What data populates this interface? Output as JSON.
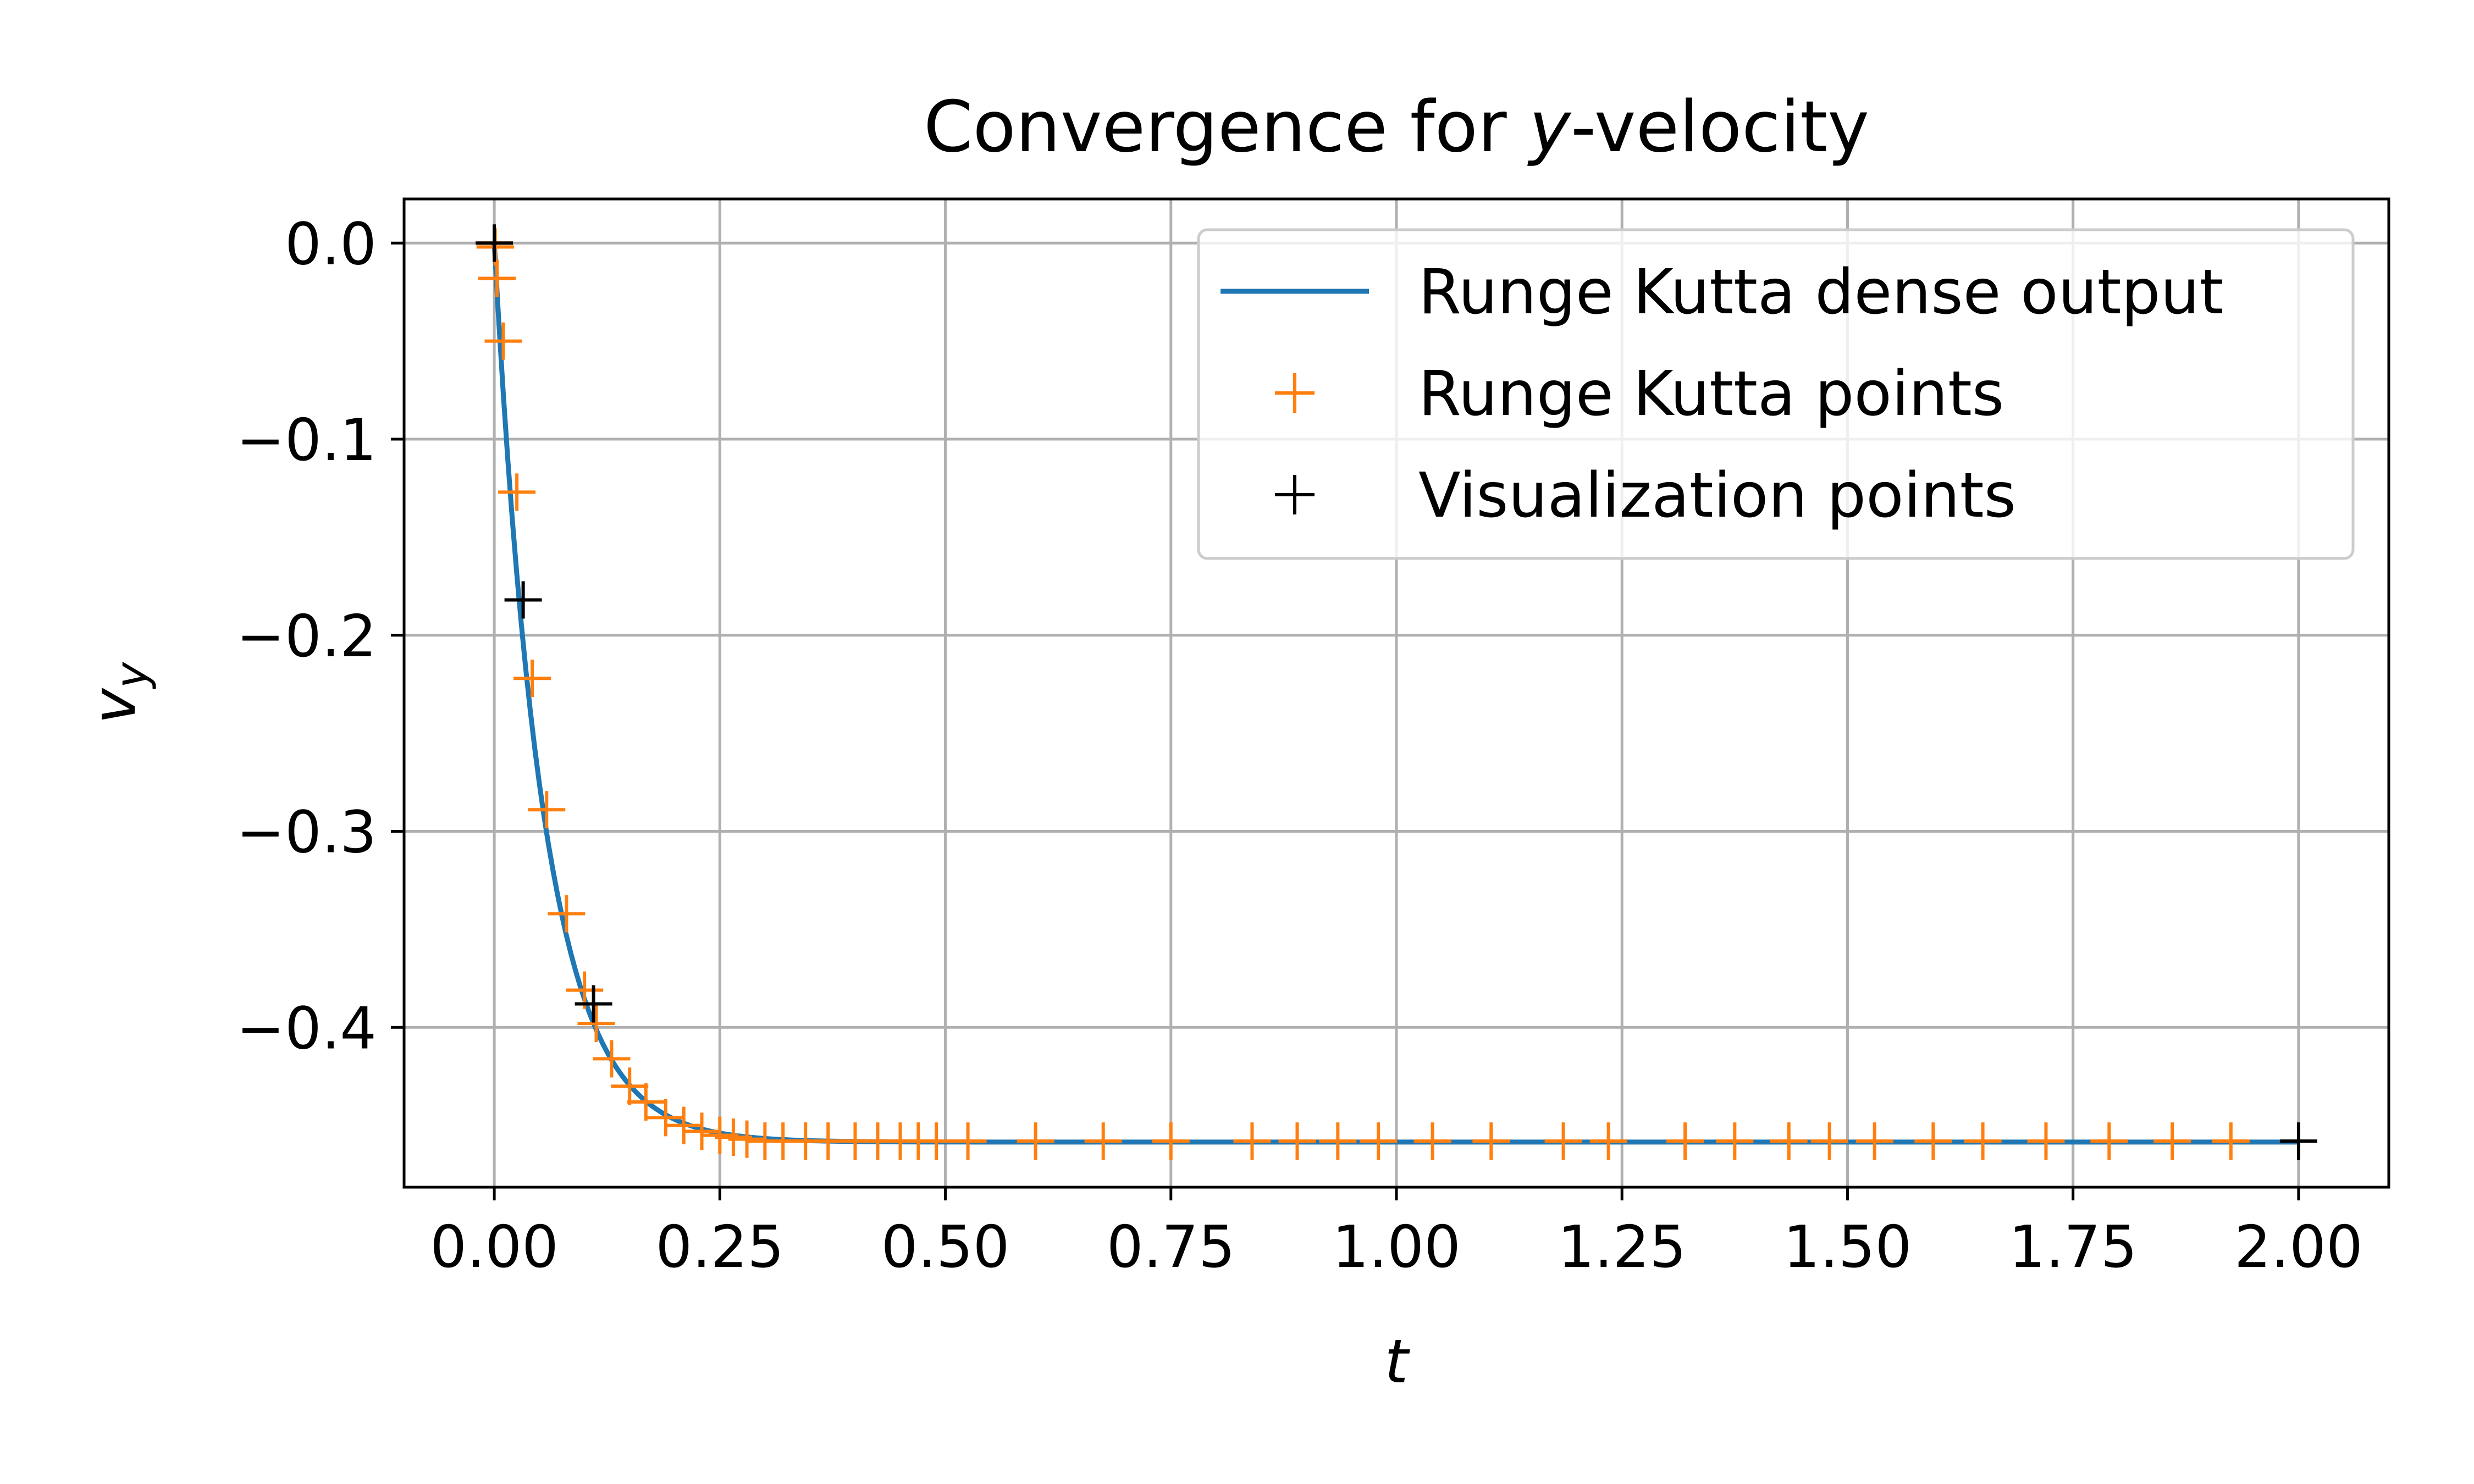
{
  "chart_data": {
    "type": "line",
    "title": "Convergence for y-velocity",
    "title_parts": [
      "Convergence for ",
      "y",
      "-velocity"
    ],
    "xlabel": "t",
    "ylabel": {
      "base": "v",
      "sub": "y"
    },
    "xlim": [
      -0.1,
      2.1
    ],
    "ylim": [
      -0.4815,
      0.0225
    ],
    "x_ticks": [
      0.0,
      0.25,
      0.5,
      0.75,
      1.0,
      1.25,
      1.5,
      1.75,
      2.0
    ],
    "x_tick_labels": [
      "0.00",
      "0.25",
      "0.50",
      "0.75",
      "1.00",
      "1.25",
      "1.50",
      "1.75",
      "2.00"
    ],
    "y_ticks": [
      0.0,
      -0.1,
      -0.2,
      -0.3,
      -0.4
    ],
    "y_tick_labels": [
      "0.0",
      "−0.1",
      "−0.2",
      "−0.3",
      "−0.4"
    ],
    "grid": true,
    "legend_position": "upper-right",
    "series": [
      {
        "name": "Runge Kutta dense output",
        "kind": "line",
        "color": "#1f77b4",
        "model": {
          "asymptote": -0.4585,
          "rate": 18.4
        }
      },
      {
        "name": "Runge Kutta points",
        "kind": "marker",
        "marker": "plus",
        "color": "#ff7f0e",
        "x": [
          0.0,
          0.001,
          0.003,
          0.01,
          0.025,
          0.042,
          0.058,
          0.08,
          0.1,
          0.113,
          0.13,
          0.15,
          0.168,
          0.19,
          0.21,
          0.23,
          0.25,
          0.265,
          0.28,
          0.3,
          0.32,
          0.345,
          0.37,
          0.4,
          0.425,
          0.45,
          0.47,
          0.49,
          0.525,
          0.6,
          0.675,
          0.75,
          0.84,
          0.89,
          0.935,
          0.98,
          1.04,
          1.105,
          1.185,
          1.235,
          1.32,
          1.375,
          1.435,
          1.48,
          1.53,
          1.595,
          1.65,
          1.72,
          1.79,
          1.86,
          1.925
        ],
        "y": [
          0.0,
          -0.002,
          -0.018,
          -0.05,
          -0.127,
          -0.222,
          -0.289,
          -0.342,
          -0.381,
          -0.398,
          -0.416,
          -0.43,
          -0.438,
          -0.446,
          -0.45,
          -0.453,
          -0.455,
          -0.456,
          -0.457,
          -0.458,
          -0.458,
          -0.458,
          -0.458,
          -0.458,
          -0.458,
          -0.458,
          -0.458,
          -0.458,
          -0.458,
          -0.458,
          -0.458,
          -0.458,
          -0.458,
          -0.458,
          -0.458,
          -0.458,
          -0.458,
          -0.458,
          -0.458,
          -0.458,
          -0.458,
          -0.458,
          -0.458,
          -0.458,
          -0.458,
          -0.458,
          -0.458,
          -0.458,
          -0.458,
          -0.458,
          -0.458
        ]
      },
      {
        "name": "Visualization points",
        "kind": "marker",
        "marker": "plus",
        "color": "#000000",
        "x": [
          0.0,
          0.032,
          0.11,
          2.0
        ],
        "y": [
          0.0,
          -0.182,
          -0.388,
          -0.458
        ]
      }
    ]
  }
}
